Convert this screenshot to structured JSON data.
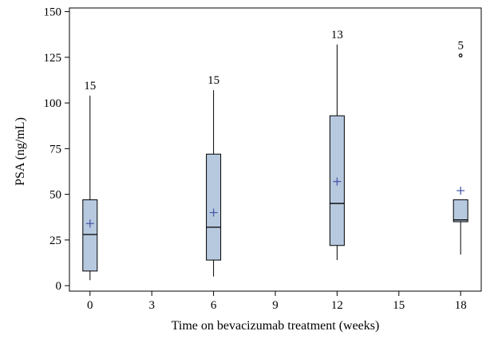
{
  "chart_data": {
    "type": "boxplot",
    "title": "",
    "xlabel": "Time on bevacizumab treatment (weeks)",
    "ylabel": "PSA (ng/mL)",
    "xlim": [
      -1,
      19
    ],
    "ylim": [
      -3,
      152
    ],
    "xticks": [
      0,
      3,
      6,
      9,
      12,
      15,
      18
    ],
    "yticks": [
      0,
      25,
      50,
      75,
      100,
      125,
      150
    ],
    "grid": false,
    "box_fill": "#b7c9df",
    "mean_color": "#4a5aa8",
    "boxes": [
      {
        "x": 0,
        "n": "15",
        "whisker_low": 3,
        "q1": 8,
        "median": 28,
        "q3": 47,
        "whisker_high": 104,
        "mean": 34,
        "outliers": []
      },
      {
        "x": 6,
        "n": "15",
        "whisker_low": 5,
        "q1": 14,
        "median": 32,
        "q3": 72,
        "whisker_high": 107,
        "mean": 40,
        "outliers": []
      },
      {
        "x": 12,
        "n": "13",
        "whisker_low": 14,
        "q1": 22,
        "median": 45,
        "q3": 93,
        "whisker_high": 132,
        "mean": 57,
        "outliers": []
      },
      {
        "x": 18,
        "n": "5",
        "whisker_low": 17,
        "q1": 35,
        "median": 36,
        "q3": 47,
        "whisker_high": 47,
        "mean": 52,
        "outliers": [
          126
        ]
      }
    ]
  }
}
